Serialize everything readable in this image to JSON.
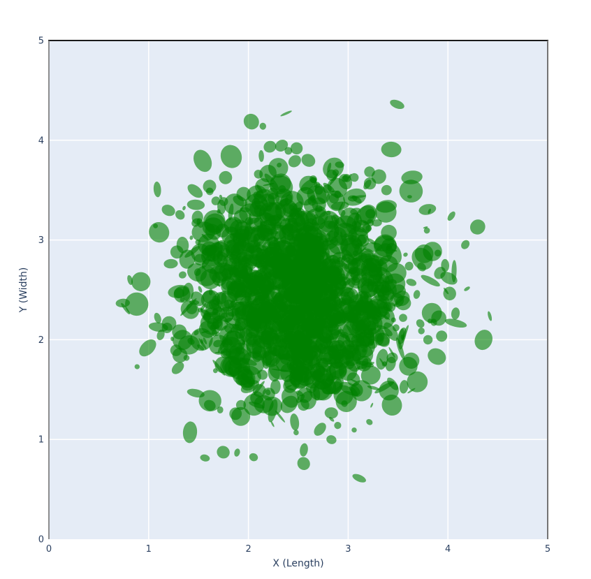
{
  "figure": {
    "background": "#ffffff",
    "plot_bg": "#e5ecf6",
    "grid_color": "#ffffff",
    "spine_top_color": "#1a1a1a",
    "spine_side_color": "#737373",
    "text_color": "#2a3f5f"
  },
  "chart_data": {
    "type": "scatter",
    "title": "",
    "xlabel": "X (Length)",
    "ylabel": "Y (Width)",
    "xlim": [
      0,
      5
    ],
    "ylim": [
      0,
      5
    ],
    "xticks": [
      0,
      1,
      2,
      3,
      4,
      5
    ],
    "yticks": [
      0,
      1,
      2,
      3,
      4,
      5
    ],
    "grid": true,
    "legend": false,
    "marker": "rotated-ellipse",
    "point_count": 1400,
    "distribution": {
      "kind": "gaussian",
      "center_x": 2.5,
      "center_y": 2.5,
      "std_x": 0.55,
      "std_y": 0.55,
      "clip_sigma": 3.6
    },
    "marker_style": {
      "fill": "#008000",
      "opacity": 0.6,
      "major_radius_px_min": 3,
      "major_radius_px_max": 17,
      "min_thickness_px": 1.3,
      "rotation_deg_max": 180
    },
    "seed": 7
  }
}
